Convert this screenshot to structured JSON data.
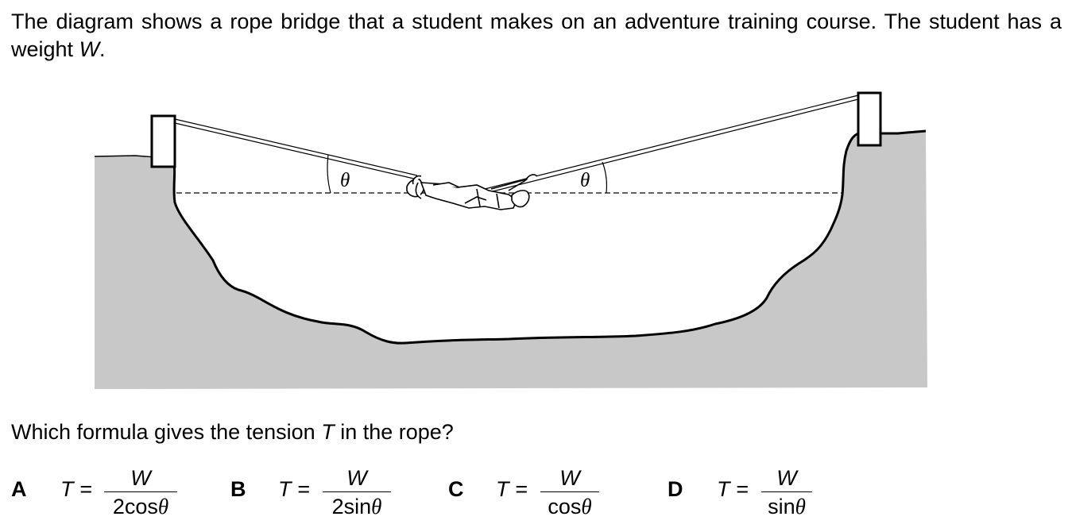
{
  "intro": {
    "text_before_symbol": "The diagram shows a rope bridge that a student makes on an adventure training course. The student has a weight ",
    "weight_symbol": "W",
    "text_after_symbol": "."
  },
  "diagram": {
    "angle_label_left": "θ",
    "angle_label_right": "θ"
  },
  "question": {
    "text_before_symbol": "Which formula gives the tension ",
    "tension_symbol": "T",
    "text_after_symbol": " in the rope?"
  },
  "options": [
    {
      "letter": "A",
      "lhs": "T =",
      "numerator": "W",
      "denominator": "2cos",
      "angle": "θ"
    },
    {
      "letter": "B",
      "lhs": "T =",
      "numerator": "W",
      "denominator": "2sin",
      "angle": "θ"
    },
    {
      "letter": "C",
      "lhs": "T =",
      "numerator": "W",
      "denominator": "cos",
      "angle": "θ"
    },
    {
      "letter": "D",
      "lhs": "T =",
      "numerator": "W",
      "denominator": "sin",
      "angle": "θ"
    }
  ]
}
